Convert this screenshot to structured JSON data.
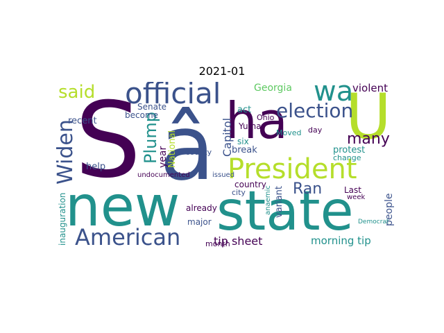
{
  "title": "2021-01",
  "colors": {
    "purple": "#440154",
    "indigo": "#3b528b",
    "teal": "#21918c",
    "green": "#5ec962",
    "lime": "#b5de2b",
    "yellow": "#fde725"
  },
  "words": [
    "S",
    "â",
    "ha",
    "U",
    "new",
    "state",
    "official",
    "wa",
    "said",
    "election",
    "President",
    "American",
    "Widen",
    "Plump",
    "many",
    "Ran",
    "tip sheet",
    "morning tip",
    "Capitol",
    "Georgia",
    "violent",
    "year",
    "National",
    "Senate",
    "act",
    "Ohio",
    "Yuma",
    "six",
    "break",
    "anaemic",
    "protest",
    "Moved",
    "day",
    "Last",
    "change",
    "week",
    "Democrat",
    "people",
    "variant",
    "country",
    "city",
    "County",
    "help",
    "recent",
    "become",
    "already",
    "major",
    "month",
    "issued",
    "undocumented",
    "inauguration"
  ]
}
